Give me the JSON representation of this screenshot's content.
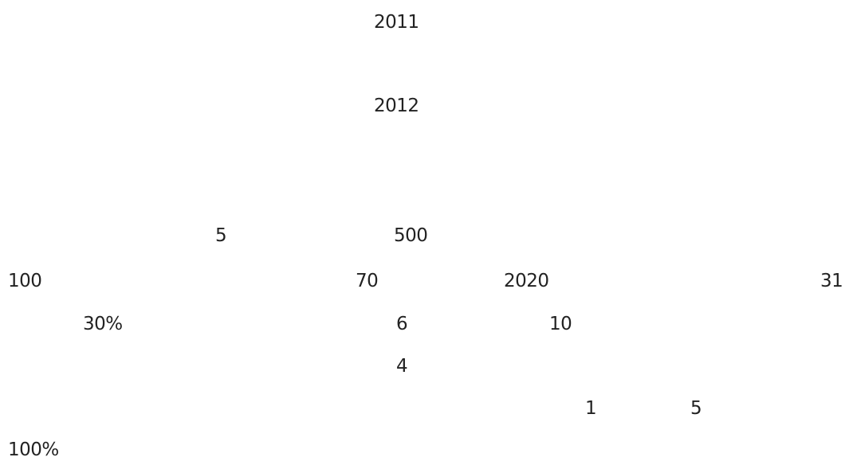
{
  "texts": [
    "2011",
    "2012",
    "5",
    "500",
    "100",
    "70",
    "2020",
    "31",
    "30%",
    "6",
    "10",
    "4",
    "1",
    "5",
    "100%"
  ]
}
